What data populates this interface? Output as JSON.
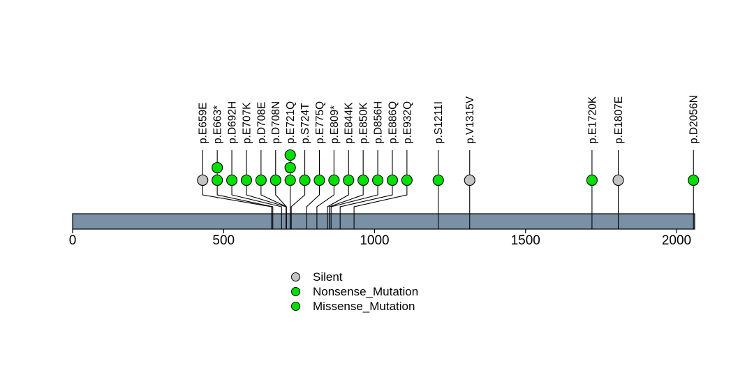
{
  "figure": {
    "background": "#FFFFFF"
  },
  "chart_data": {
    "type": "lollipop",
    "title": "",
    "xlabel": "",
    "ylabel": "",
    "axis": {
      "tick_labels": [
        "0",
        "500",
        "1000",
        "1500",
        "2000"
      ],
      "tick_values": [
        0,
        500,
        1000,
        1500,
        2000
      ],
      "xmin": 0,
      "xmax": 2060,
      "grid": false
    },
    "protein": {
      "start": 0,
      "end": 2060,
      "bar_color": "#7A90A5",
      "bar_border_color": "#000000"
    },
    "line_color": "#000000",
    "point_border_color": "#000000",
    "label_color": "#000000",
    "mutations": [
      {
        "label": "p.E659E",
        "position": 659,
        "type": "Silent",
        "count": 1
      },
      {
        "label": "p.E663*",
        "position": 663,
        "type": "Nonsense_Mutation",
        "count": 2
      },
      {
        "label": "p.D692H",
        "position": 692,
        "type": "Missense_Mutation",
        "count": 1
      },
      {
        "label": "p.E707K",
        "position": 707,
        "type": "Missense_Mutation",
        "count": 1
      },
      {
        "label": "p.D708E",
        "position": 708,
        "type": "Missense_Mutation",
        "count": 1
      },
      {
        "label": "p.D708N",
        "position": 708,
        "type": "Missense_Mutation",
        "count": 1
      },
      {
        "label": "p.E721Q",
        "position": 721,
        "type": "Missense_Mutation",
        "count": 3
      },
      {
        "label": "p.S724T",
        "position": 724,
        "type": "Missense_Mutation",
        "count": 1
      },
      {
        "label": "p.E775Q",
        "position": 775,
        "type": "Missense_Mutation",
        "count": 1
      },
      {
        "label": "p.E809*",
        "position": 809,
        "type": "Nonsense_Mutation",
        "count": 1
      },
      {
        "label": "p.E844K",
        "position": 844,
        "type": "Missense_Mutation",
        "count": 1
      },
      {
        "label": "p.E850K",
        "position": 850,
        "type": "Missense_Mutation",
        "count": 1
      },
      {
        "label": "p.D856H",
        "position": 856,
        "type": "Missense_Mutation",
        "count": 1
      },
      {
        "label": "p.E886Q",
        "position": 886,
        "type": "Missense_Mutation",
        "count": 1
      },
      {
        "label": "p.E932Q",
        "position": 932,
        "type": "Missense_Mutation",
        "count": 1
      },
      {
        "label": "p.S1211I",
        "position": 1211,
        "type": "Missense_Mutation",
        "count": 1
      },
      {
        "label": "p.V1315V",
        "position": 1315,
        "type": "Silent",
        "count": 1
      },
      {
        "label": "p.E1720K",
        "position": 1720,
        "type": "Missense_Mutation",
        "count": 1
      },
      {
        "label": "p.E1807E",
        "position": 1807,
        "type": "Silent",
        "count": 1
      },
      {
        "label": "p.D2056N",
        "position": 2056,
        "type": "Missense_Mutation",
        "count": 1
      }
    ],
    "legend": {
      "position": "bottom-center",
      "entries": [
        {
          "label": "Silent",
          "color": "#C3C3C3"
        },
        {
          "label": "Nonsense_Mutation",
          "color": "#00E000"
        },
        {
          "label": "Missense_Mutation",
          "color": "#00E000"
        }
      ]
    },
    "layout": {
      "label_rotation": -90,
      "points_through_bar": true
    }
  }
}
